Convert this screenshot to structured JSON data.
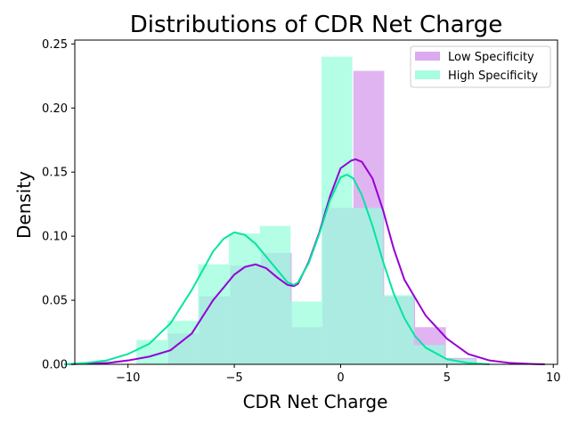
{
  "chart_data": {
    "type": "histogram+kde",
    "title": "Distributions of CDR Net Charge",
    "xlabel": "CDR Net Charge",
    "ylabel": "Density",
    "xlim": [
      -12.5,
      10.2
    ],
    "ylim": [
      0,
      0.253
    ],
    "xticks": [
      -10,
      -5,
      0,
      5,
      10
    ],
    "yticks": [
      0.0,
      0.05,
      0.1,
      0.15,
      0.2,
      0.25
    ],
    "ytick_labels": [
      "0.00",
      "0.05",
      "0.10",
      "0.15",
      "0.20",
      "0.25"
    ],
    "legend_position": "top-right",
    "grid": false,
    "series": [
      {
        "name": "Low Specificity",
        "color": "#9400d3",
        "bar_color": "#d59bec",
        "bins": [
          {
            "x0": -8.1,
            "x1": -6.65,
            "y": 0.024
          },
          {
            "x0": -6.65,
            "x1": -5.2,
            "y": 0.053
          },
          {
            "x0": -5.2,
            "x1": -3.75,
            "y": 0.077
          },
          {
            "x0": -3.75,
            "x1": -2.3,
            "y": 0.087
          },
          {
            "x0": -2.3,
            "x1": -0.85,
            "y": 0.029
          },
          {
            "x0": -0.85,
            "x1": 0.6,
            "y": 0.122
          },
          {
            "x0": 0.6,
            "x1": 2.05,
            "y": 0.229
          },
          {
            "x0": 2.05,
            "x1": 3.5,
            "y": 0.053
          },
          {
            "x0": 3.5,
            "x1": 4.95,
            "y": 0.029
          },
          {
            "x0": 4.95,
            "x1": 6.4,
            "y": 0.005
          }
        ],
        "kde_x": [
          -12.8,
          -12,
          -11,
          -10,
          -9,
          -8,
          -7,
          -6,
          -5,
          -4.5,
          -4,
          -3.5,
          -3,
          -2.5,
          -2.2,
          -2,
          -1.5,
          -1,
          -0.5,
          0,
          0.5,
          0.7,
          1,
          1.5,
          2,
          2.5,
          3,
          4,
          5,
          6,
          7,
          8,
          9,
          9.6
        ],
        "kde_y": [
          0.0,
          0.0005,
          0.001,
          0.003,
          0.006,
          0.011,
          0.024,
          0.05,
          0.07,
          0.076,
          0.078,
          0.075,
          0.068,
          0.062,
          0.061,
          0.063,
          0.08,
          0.103,
          0.131,
          0.153,
          0.159,
          0.16,
          0.158,
          0.145,
          0.12,
          0.09,
          0.066,
          0.038,
          0.02,
          0.008,
          0.003,
          0.001,
          0.0003,
          0.0
        ]
      },
      {
        "name": "High Specificity",
        "color": "#00e5a0",
        "bar_color": "#99fddc",
        "bins": [
          {
            "x0": -9.6,
            "x1": -8.15,
            "y": 0.019
          },
          {
            "x0": -8.15,
            "x1": -6.7,
            "y": 0.034
          },
          {
            "x0": -6.7,
            "x1": -5.25,
            "y": 0.078
          },
          {
            "x0": -5.25,
            "x1": -3.8,
            "y": 0.102
          },
          {
            "x0": -3.8,
            "x1": -2.35,
            "y": 0.108
          },
          {
            "x0": -2.35,
            "x1": -0.9,
            "y": 0.049
          },
          {
            "x0": -0.9,
            "x1": 0.55,
            "y": 0.24
          },
          {
            "x0": 0.55,
            "x1": 2.0,
            "y": 0.122
          },
          {
            "x0": 2.0,
            "x1": 3.45,
            "y": 0.054
          },
          {
            "x0": 3.45,
            "x1": 4.9,
            "y": 0.015
          },
          {
            "x0": 4.9,
            "x1": 6.35,
            "y": 0.004
          }
        ],
        "kde_x": [
          -13,
          -12,
          -11,
          -10,
          -9,
          -8,
          -7,
          -6,
          -5.5,
          -5,
          -4.5,
          -4,
          -3.5,
          -3,
          -2.5,
          -2.2,
          -2,
          -1.5,
          -1,
          -0.5,
          0,
          0.3,
          0.6,
          1,
          1.5,
          2,
          2.5,
          3,
          3.5,
          4,
          5,
          6,
          7
        ],
        "kde_y": [
          0.0,
          0.001,
          0.003,
          0.008,
          0.016,
          0.032,
          0.058,
          0.088,
          0.098,
          0.103,
          0.101,
          0.094,
          0.084,
          0.074,
          0.064,
          0.062,
          0.064,
          0.079,
          0.102,
          0.128,
          0.146,
          0.148,
          0.145,
          0.132,
          0.108,
          0.08,
          0.055,
          0.036,
          0.022,
          0.013,
          0.004,
          0.001,
          0.0
        ]
      }
    ]
  }
}
